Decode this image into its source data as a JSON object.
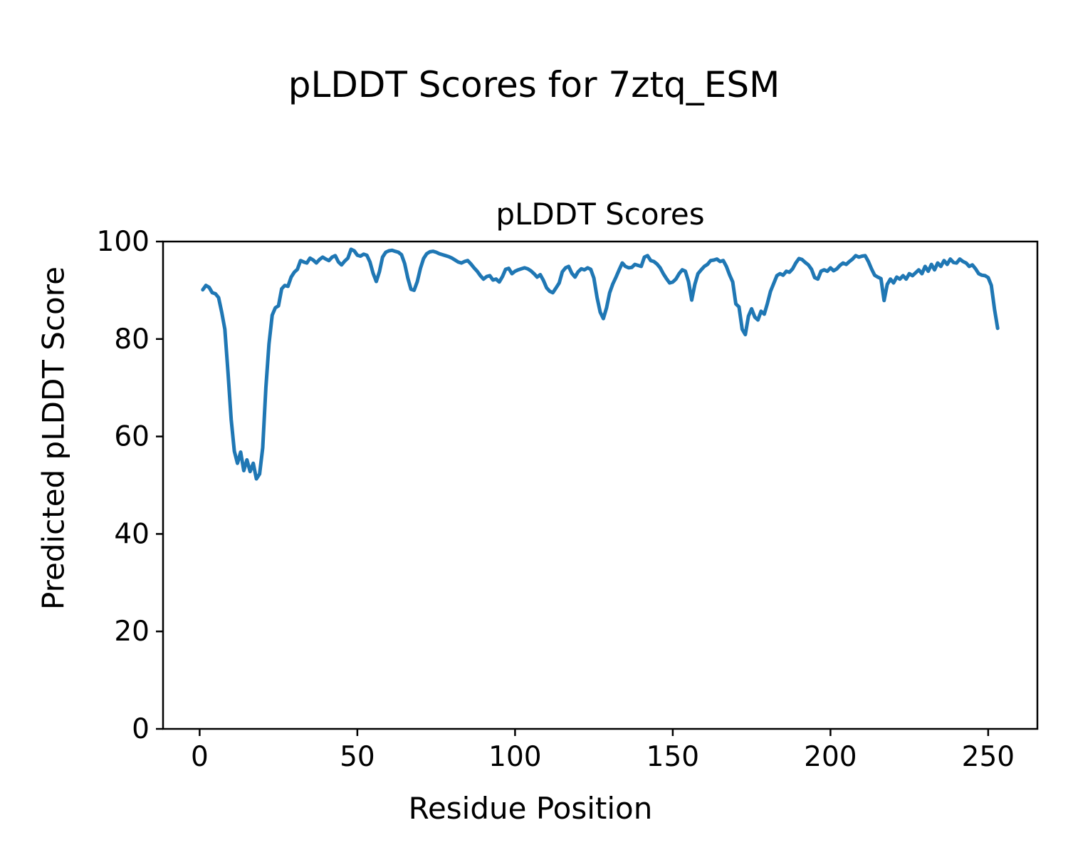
{
  "figure": {
    "suptitle": "pLDDT Scores for 7ztq_ESM"
  },
  "chart_data": {
    "type": "line",
    "title": "pLDDT Scores",
    "xlabel": "Residue Position",
    "ylabel": "Predicted pLDDT Score",
    "line_color": "#1f77b4",
    "axis_color": "#000000",
    "xlim": [
      -11.6,
      265.6
    ],
    "ylim": [
      0,
      100
    ],
    "xticks": [
      0,
      50,
      100,
      150,
      200,
      250
    ],
    "yticks": [
      0,
      20,
      40,
      60,
      80,
      100
    ],
    "grid": false,
    "legend": null,
    "x_start": 1,
    "series": [
      {
        "name": "pLDDT",
        "values": [
          90.1,
          91.0,
          90.6,
          89.5,
          89.3,
          88.5,
          85.5,
          82.0,
          73.0,
          63.5,
          57.0,
          54.5,
          56.8,
          53.0,
          55.2,
          52.8,
          54.5,
          51.3,
          52.3,
          57.7,
          70.0,
          79.0,
          84.9,
          86.4,
          86.8,
          90.3,
          91.0,
          90.8,
          92.7,
          93.7,
          94.3,
          96.1,
          95.8,
          95.6,
          96.6,
          96.2,
          95.6,
          96.3,
          96.8,
          96.4,
          96.1,
          96.8,
          97.1,
          95.8,
          95.2,
          96.0,
          96.6,
          98.4,
          98.1,
          97.2,
          97.0,
          97.4,
          97.2,
          95.8,
          93.5,
          91.8,
          93.8,
          96.8,
          97.8,
          98.1,
          98.2,
          98.0,
          97.8,
          97.3,
          95.5,
          92.5,
          90.2,
          90.0,
          91.8,
          94.5,
          96.5,
          97.5,
          97.9,
          98.0,
          97.8,
          97.5,
          97.3,
          97.1,
          96.9,
          96.6,
          96.2,
          95.8,
          95.6,
          95.9,
          96.1,
          95.4,
          94.6,
          93.9,
          93.0,
          92.3,
          92.8,
          93.0,
          92.1,
          92.3,
          91.7,
          92.8,
          94.3,
          94.5,
          93.4,
          93.9,
          94.2,
          94.4,
          94.6,
          94.4,
          94.0,
          93.4,
          92.7,
          93.2,
          92.0,
          90.5,
          89.8,
          89.5,
          90.5,
          91.5,
          93.8,
          94.6,
          94.9,
          93.5,
          92.7,
          93.8,
          94.4,
          94.2,
          94.6,
          94.3,
          92.5,
          88.5,
          85.5,
          84.2,
          86.4,
          89.5,
          91.3,
          92.7,
          94.2,
          95.6,
          94.9,
          94.6,
          94.7,
          95.3,
          95.1,
          94.9,
          96.8,
          97.1,
          96.1,
          95.9,
          95.4,
          94.6,
          93.4,
          92.4,
          91.5,
          91.7,
          92.3,
          93.4,
          94.2,
          93.9,
          91.8,
          88.0,
          91.2,
          93.4,
          94.2,
          94.9,
          95.3,
          96.1,
          96.2,
          96.4,
          95.9,
          96.1,
          94.9,
          93.2,
          91.7,
          87.2,
          86.6,
          82.0,
          80.9,
          84.7,
          86.2,
          84.5,
          83.9,
          85.7,
          85.1,
          87.3,
          89.8,
          91.4,
          93.0,
          93.4,
          93.1,
          93.9,
          93.7,
          94.4,
          95.6,
          96.5,
          96.3,
          95.7,
          95.2,
          94.3,
          92.6,
          92.3,
          93.9,
          94.2,
          93.9,
          94.6,
          94.0,
          94.4,
          95.1,
          95.6,
          95.3,
          95.9,
          96.4,
          97.1,
          96.8,
          97.0,
          97.1,
          95.9,
          94.4,
          93.1,
          92.7,
          92.4,
          87.9,
          91.2,
          92.3,
          91.5,
          92.7,
          92.3,
          93.0,
          92.3,
          93.4,
          93.0,
          93.6,
          94.2,
          93.4,
          94.9,
          93.9,
          95.3,
          94.2,
          95.6,
          94.9,
          96.1,
          95.3,
          96.4,
          95.7,
          95.6,
          96.4,
          95.9,
          95.6,
          94.9,
          95.2,
          94.4,
          93.4,
          93.1,
          93.0,
          92.6,
          91.0,
          86.1,
          82.2
        ]
      }
    ]
  }
}
